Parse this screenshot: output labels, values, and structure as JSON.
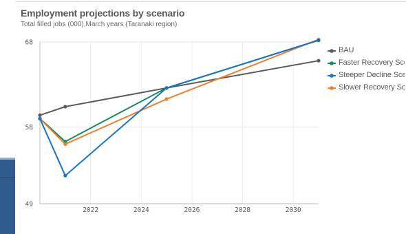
{
  "chart_data": {
    "type": "line",
    "title": "Employment projections by scenario",
    "subtitle": "Total filled jobs (000),March years (Taranaki region)",
    "xlabel": "",
    "ylabel": "",
    "xlim": [
      2020,
      2031
    ],
    "ylim": [
      49,
      68
    ],
    "x_ticks": [
      2022,
      2024,
      2026,
      2028,
      2030
    ],
    "y_ticks": [
      49,
      58,
      68
    ],
    "grid": true,
    "legend_position": "right",
    "series": [
      {
        "name": "BAU",
        "color": "#5b5b5b",
        "x": [
          2020,
          2021,
          2025,
          2031
        ],
        "y": [
          59.4,
          60.4,
          62.6,
          65.8
        ]
      },
      {
        "name": "Faster Recovery Scen...",
        "color": "#138a5e",
        "x": [
          2020,
          2021,
          2025,
          2031
        ],
        "y": [
          59.0,
          56.3,
          62.6,
          68.2
        ]
      },
      {
        "name": "Steeper Decline Scen...",
        "color": "#1874c4",
        "x": [
          2020,
          2021,
          2025,
          2031
        ],
        "y": [
          59.0,
          52.3,
          62.6,
          68.2
        ]
      },
      {
        "name": "Slower Recovery Scen...",
        "color": "#ef7e2f",
        "x": [
          2020,
          2021,
          2025,
          2031
        ],
        "y": [
          59.0,
          56.0,
          61.3,
          68.3
        ]
      }
    ]
  }
}
